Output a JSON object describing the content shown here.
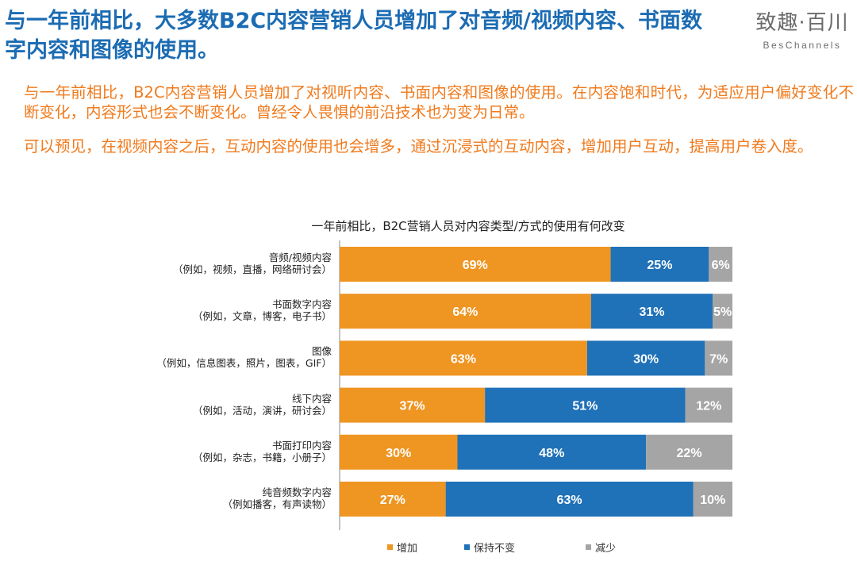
{
  "headline": "与一年前相比，大多数B2C内容营销人员增加了对音频/视频内容、书面数字内容和图像的使用。",
  "logo": {
    "cn": "致趣·百川",
    "en": "BesChannels"
  },
  "paragraphs": [
    "与一年前相比，B2C内容营销人员增加了对视听内容、书面内容和图像的使用。在内容饱和时代，为适应用户偏好变化不断变化，内容形式也会不断变化。曾经令人畏惧的前沿技术也为变为日常。",
    "可以预见，在视频内容之后，互动内容的使用也会增多，通过沉浸式的互动内容，增加用户互动，提高用户卷入度。"
  ],
  "chart_data": {
    "type": "bar",
    "orientation": "horizontal",
    "stacked": true,
    "title": "一年前相比，B2C营销人员对内容类型/方式的使用有何改变",
    "categories": [
      {
        "name": "音频/视频内容",
        "example": "（例如，视频，直播，网络研讨会）"
      },
      {
        "name": "书面数字内容",
        "example": "（例如，文章，博客，电子书）"
      },
      {
        "name": "图像",
        "example": "（例如，信息图表，照片，图表，GIF）"
      },
      {
        "name": "线下内容",
        "example": "（例如，活动，演讲，研讨会）"
      },
      {
        "name": "书面打印内容",
        "example": "（例如，杂志，书籍，小册子）"
      },
      {
        "name": "纯音频数字内容",
        "example": "（例如播客，有声读物）"
      }
    ],
    "series": [
      {
        "name": "增加",
        "color": "#ee9522",
        "values": [
          69,
          64,
          63,
          37,
          30,
          27
        ],
        "labels": [
          "69%",
          "64%",
          "63%",
          "37%",
          "30%",
          "27%"
        ]
      },
      {
        "name": "保持不变",
        "color": "#1f71b8",
        "values": [
          25,
          31,
          30,
          51,
          48,
          63
        ],
        "labels": [
          "25%",
          "31%",
          "30%",
          "51%",
          "48%",
          "63%"
        ]
      },
      {
        "name": "减少",
        "color": "#a5a5a5",
        "values": [
          6,
          5,
          7,
          12,
          22,
          10
        ],
        "labels": [
          "6%",
          "5%",
          "7%",
          "12%",
          "22%",
          "10%"
        ]
      }
    ],
    "xlim": [
      0,
      100
    ],
    "legend_position": "bottom"
  }
}
